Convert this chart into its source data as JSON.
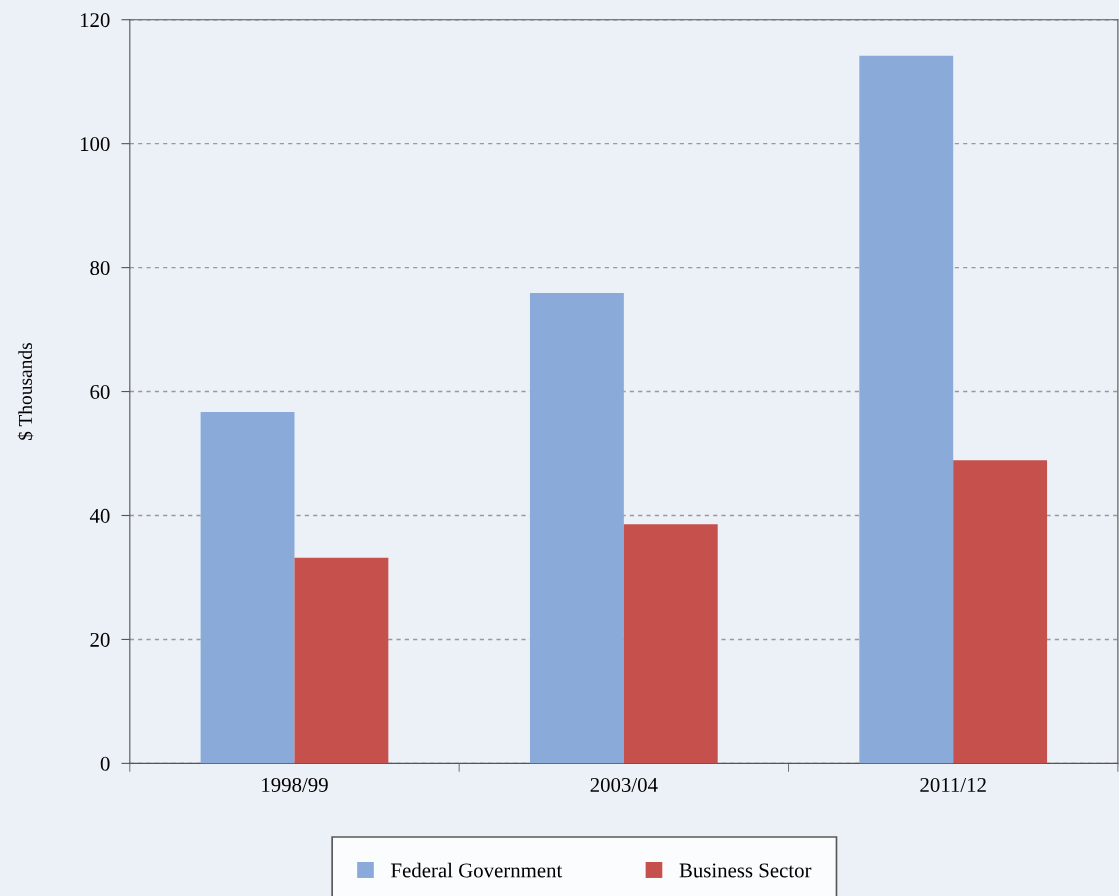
{
  "chart_data": {
    "type": "bar",
    "ylabel": "$ Thousands",
    "categories": [
      "1998/99",
      "2003/04",
      "2011/12"
    ],
    "series": [
      {
        "name": "Federal Government",
        "color": "#8aaad9",
        "values": [
          56.7,
          75.9,
          114.2
        ]
      },
      {
        "name": "Business Sector",
        "color": "#c5504c",
        "values": [
          33.2,
          38.6,
          48.9
        ]
      }
    ],
    "ylim": [
      0,
      120
    ],
    "yticks": [
      0,
      20,
      40,
      60,
      80,
      100,
      120
    ],
    "grid": "y",
    "legend": "bottom"
  }
}
